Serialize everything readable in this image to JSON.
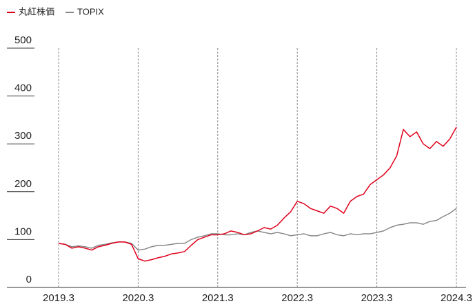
{
  "chart_data": {
    "type": "line",
    "categories": [
      "2019.3",
      null,
      null,
      null,
      null,
      null,
      null,
      null,
      null,
      null,
      null,
      null,
      "2020.3",
      null,
      null,
      null,
      null,
      null,
      null,
      null,
      null,
      null,
      null,
      null,
      "2021.3",
      null,
      null,
      null,
      null,
      null,
      null,
      null,
      null,
      null,
      null,
      null,
      "2022.3",
      null,
      null,
      null,
      null,
      null,
      null,
      null,
      null,
      null,
      null,
      null,
      "2023.3",
      null,
      null,
      null,
      null,
      null,
      null,
      null,
      null,
      null,
      null,
      null,
      "2024.3"
    ],
    "series": [
      {
        "name": "丸紅株価",
        "color": "#e0001b",
        "values": [
          92,
          90,
          82,
          85,
          82,
          78,
          85,
          88,
          92,
          95,
          95,
          90,
          60,
          55,
          58,
          62,
          65,
          70,
          72,
          75,
          88,
          100,
          105,
          110,
          110,
          112,
          118,
          115,
          110,
          112,
          118,
          125,
          122,
          130,
          145,
          158,
          180,
          175,
          165,
          160,
          155,
          170,
          165,
          155,
          180,
          190,
          195,
          215,
          225,
          235,
          250,
          275,
          330,
          315,
          325,
          300,
          290,
          305,
          295,
          310,
          335
        ]
      },
      {
        "name": "TOPIX",
        "color": "#888888",
        "values": [
          92,
          90,
          85,
          87,
          85,
          82,
          88,
          90,
          93,
          95,
          95,
          92,
          78,
          80,
          85,
          88,
          88,
          90,
          92,
          92,
          100,
          105,
          108,
          112,
          112,
          110,
          110,
          112,
          110,
          115,
          118,
          115,
          112,
          115,
          112,
          108,
          110,
          112,
          108,
          108,
          112,
          115,
          110,
          108,
          112,
          110,
          112,
          112,
          115,
          118,
          125,
          130,
          132,
          135,
          135,
          132,
          138,
          140,
          148,
          155,
          165
        ]
      }
    ],
    "ylim": [
      0,
      500
    ],
    "yticks": [
      0,
      100,
      200,
      300,
      400,
      500
    ],
    "legend": "top-left"
  }
}
